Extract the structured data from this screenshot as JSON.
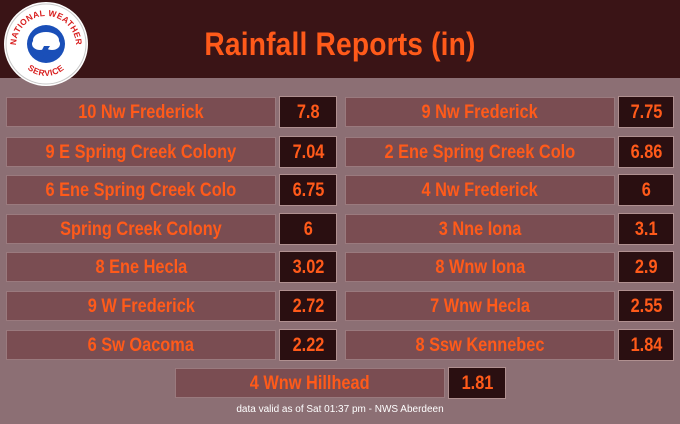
{
  "header": {
    "title": "Rainfall Reports (in)",
    "logo_text": "NATIONAL WEATHER SERVICE"
  },
  "reports": [
    {
      "location": "10 Nw Frederick",
      "value": "7.8"
    },
    {
      "location": "9 Nw Frederick",
      "value": "7.75"
    },
    {
      "location": "9 E Spring Creek Colony",
      "value": "7.04"
    },
    {
      "location": "2 Ene Spring Creek Colo",
      "value": "6.86"
    },
    {
      "location": "6 Ene Spring Creek Colo",
      "value": "6.75"
    },
    {
      "location": "4 Nw Frederick",
      "value": "6"
    },
    {
      "location": "Spring Creek Colony",
      "value": "6"
    },
    {
      "location": "3 Nne Iona",
      "value": "3.1"
    },
    {
      "location": "8 Ene Hecla",
      "value": "3.02"
    },
    {
      "location": "8 Wnw Iona",
      "value": "2.9"
    },
    {
      "location": "9 W Frederick",
      "value": "2.72"
    },
    {
      "location": "7 Wnw Hecla",
      "value": "2.55"
    },
    {
      "location": "6 Sw Oacoma",
      "value": "2.22"
    },
    {
      "location": "8 Ssw Kennebec",
      "value": "1.84"
    },
    {
      "location": "4 Wnw Hillhead",
      "value": "1.81"
    }
  ],
  "footer": {
    "text": "data valid as of Sat 01:37 pm - NWS Aberdeen"
  },
  "colors": {
    "accent": "#ff5a1a",
    "header_bg": "#3a1416",
    "page_bg": "#8c6f74",
    "label_bg": "#7a4d52",
    "value_bg": "#2a0f11"
  }
}
